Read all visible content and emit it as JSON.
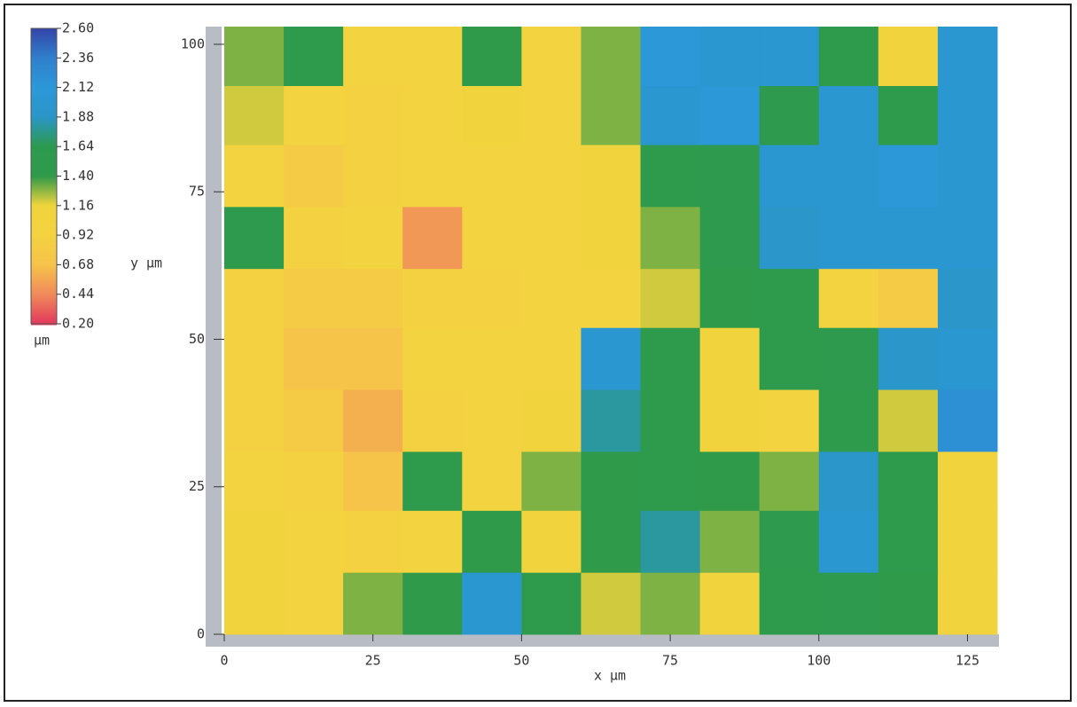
{
  "chart_data": {
    "type": "heatmap",
    "xlabel": "x µm",
    "ylabel": "y µm",
    "colorbar_label": "µm",
    "xlim": [
      0,
      130
    ],
    "ylim": [
      0,
      103
    ],
    "xticks": [
      0,
      25,
      50,
      75,
      100,
      125
    ],
    "yticks": [
      0,
      25,
      50,
      75,
      100
    ],
    "x": [
      5,
      15,
      25,
      35,
      45,
      55,
      65,
      75,
      85,
      95,
      105,
      115,
      125
    ],
    "y": [
      5,
      16,
      26,
      36,
      47,
      57,
      67,
      78,
      88,
      98
    ],
    "z": [
      [
        1.1,
        1.0,
        1.3,
        1.4,
        2.0,
        1.5,
        1.2,
        1.3,
        1.1,
        1.5,
        1.6,
        1.4,
        1.1
      ],
      [
        1.1,
        1.0,
        0.9,
        1.0,
        1.4,
        1.1,
        1.4,
        1.8,
        1.3,
        1.6,
        2.0,
        1.5,
        1.1
      ],
      [
        1.0,
        0.9,
        0.7,
        1.5,
        1.0,
        1.3,
        1.4,
        1.5,
        1.4,
        1.3,
        1.9,
        1.5,
        1.1
      ],
      [
        0.9,
        0.8,
        0.6,
        0.9,
        1.0,
        1.1,
        1.8,
        1.5,
        1.1,
        1.0,
        1.5,
        1.2,
        2.2
      ],
      [
        0.9,
        0.7,
        0.7,
        1.0,
        1.0,
        1.0,
        2.0,
        1.5,
        1.1,
        1.5,
        1.6,
        1.9,
        2.0
      ],
      [
        0.9,
        0.8,
        0.8,
        0.9,
        0.9,
        1.0,
        1.0,
        1.2,
        1.4,
        1.5,
        1.0,
        0.8,
        1.9
      ],
      [
        1.6,
        0.9,
        1.0,
        0.5,
        1.0,
        1.0,
        1.1,
        1.3,
        1.6,
        1.9,
        2.0,
        2.0,
        2.0
      ],
      [
        1.0,
        0.8,
        0.9,
        1.0,
        1.0,
        1.0,
        1.1,
        1.5,
        1.6,
        2.0,
        2.0,
        2.1,
        2.0
      ],
      [
        1.2,
        1.0,
        0.9,
        1.0,
        1.1,
        1.0,
        1.3,
        2.0,
        2.1,
        1.6,
        2.0,
        1.5,
        2.0
      ],
      [
        1.3,
        1.5,
        1.0,
        1.0,
        1.4,
        1.0,
        1.3,
        2.1,
        2.0,
        2.0,
        1.5,
        1.1,
        2.0
      ]
    ],
    "zlim": [
      0.2,
      2.6
    ],
    "zticks": [
      {
        "value": 2.6,
        "label": "2.60"
      },
      2.36,
      2.12,
      1.88,
      1.64,
      {
        "value": 1.4,
        "label": "1.40"
      },
      1.16,
      0.92,
      0.68,
      0.44,
      {
        "value": 0.2,
        "label": "0.20"
      }
    ],
    "colorscale": [
      "#e23a5c",
      "#f08a5a",
      "#f6c34a",
      "#f4d240",
      "#f0d43c",
      "#2f9a4a",
      "#2c9a4e",
      "#2a96c8",
      "#2c98d8",
      "#2f80cc",
      "#3444a8"
    ]
  }
}
